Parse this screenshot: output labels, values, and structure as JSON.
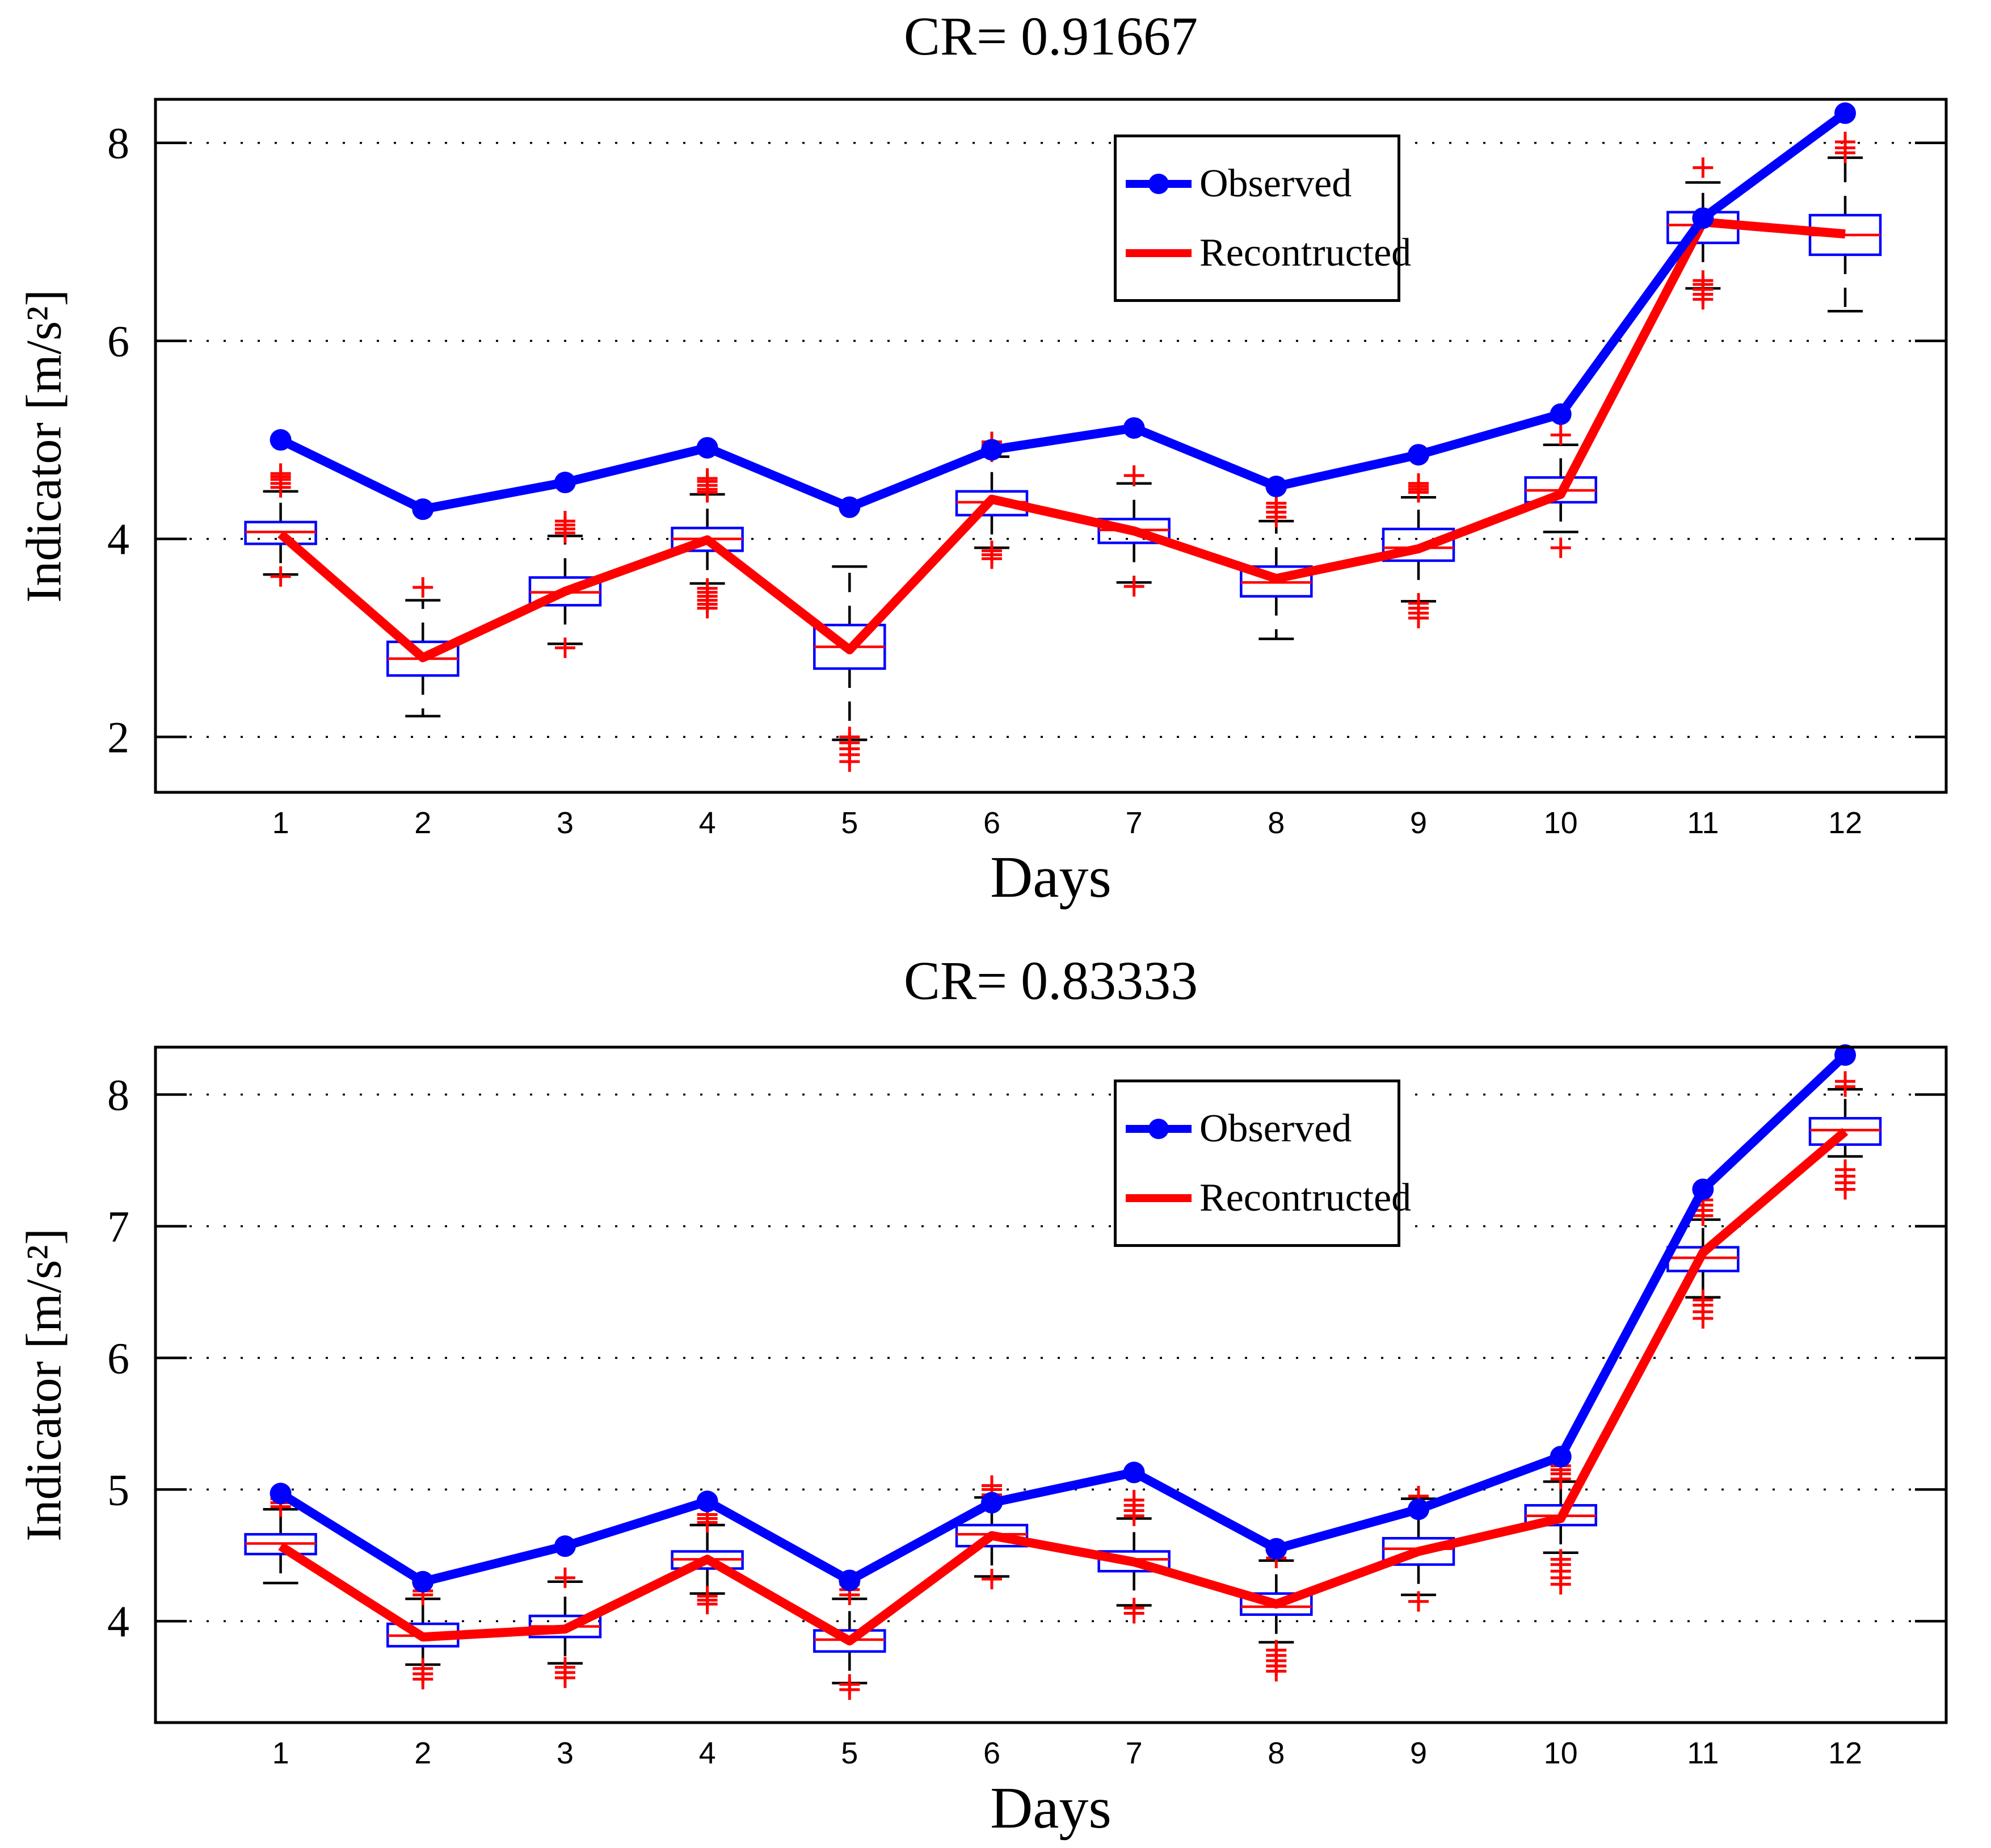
{
  "figure": {
    "background": "#ffffff"
  },
  "colors": {
    "observed": "#0000ff",
    "reconstructed": "#ff0000",
    "axis": "#000000",
    "box": "#0000ff",
    "median": "#ff0000",
    "outlier": "#ff0000",
    "grid": "#000000"
  },
  "legend": {
    "entries": [
      {
        "label": "Observed",
        "color": "#0000ff",
        "marker": "line-with-dot"
      },
      {
        "label": "Recontructed",
        "color": "#ff0000",
        "marker": "line"
      }
    ]
  },
  "chart_data": [
    {
      "type": "line+boxplot",
      "title": "CR= 0.91667",
      "xlabel": "Days",
      "ylabel": "Indicator [m/s²]",
      "xlim": [
        0.12,
        12.71
      ],
      "ylim": [
        1.44,
        8.44
      ],
      "yticks": [
        2,
        4,
        6,
        8
      ],
      "xticks": [
        1,
        2,
        3,
        4,
        5,
        6,
        7,
        8,
        9,
        10,
        11,
        12
      ],
      "grid": "horizontal-dotted",
      "legend_position": "upper-center-right",
      "series": [
        {
          "name": "Observed",
          "color": "#0000ff",
          "marker": "circle",
          "values": [
            5.0,
            4.3,
            4.57,
            4.92,
            4.32,
            4.9,
            5.12,
            4.53,
            4.85,
            5.26,
            7.24,
            8.3
          ]
        },
        {
          "name": "Recontructed",
          "color": "#ff0000",
          "marker": "none",
          "values": [
            4.05,
            2.8,
            3.47,
            3.99,
            2.88,
            4.4,
            4.08,
            3.6,
            3.9,
            4.45,
            7.2,
            7.08
          ]
        }
      ],
      "boxplots": {
        "box_color": "#0000ff",
        "median_color": "#ff0000",
        "whisker_style": "dashed-black",
        "outlier_marker": "red-plus",
        "items": [
          {
            "day": 1,
            "q1": 3.95,
            "median": 4.07,
            "q3": 4.17,
            "whisker_low": 3.64,
            "whisker_high": 4.48,
            "outliers_high": [
              4.52,
              4.56,
              4.6,
              4.63,
              4.66
            ],
            "outliers_low": [
              3.62
            ]
          },
          {
            "day": 2,
            "q1": 2.62,
            "median": 2.79,
            "q3": 2.96,
            "whisker_low": 2.21,
            "whisker_high": 3.38,
            "outliers_high": [
              3.51
            ],
            "outliers_low": []
          },
          {
            "day": 3,
            "q1": 3.33,
            "median": 3.46,
            "q3": 3.61,
            "whisker_low": 2.94,
            "whisker_high": 4.03,
            "outliers_high": [
              4.06,
              4.1,
              4.14,
              4.18
            ],
            "outliers_low": [
              2.9
            ]
          },
          {
            "day": 4,
            "q1": 3.88,
            "median": 4.0,
            "q3": 4.11,
            "whisker_low": 3.55,
            "whisker_high": 4.45,
            "outliers_high": [
              4.47,
              4.5,
              4.54,
              4.58,
              4.61
            ],
            "outliers_low": [
              3.3,
              3.34,
              3.38,
              3.42,
              3.46,
              3.5
            ]
          },
          {
            "day": 5,
            "q1": 2.69,
            "median": 2.91,
            "q3": 3.13,
            "whisker_low": 1.97,
            "whisker_high": 3.72,
            "outliers_high": [],
            "outliers_low": [
              1.75,
              1.82,
              1.88,
              1.94,
              2.0
            ]
          },
          {
            "day": 6,
            "q1": 4.24,
            "median": 4.37,
            "q3": 4.48,
            "whisker_low": 3.91,
            "whisker_high": 4.83,
            "outliers_high": [
              4.88,
              4.92,
              4.95,
              4.98
            ],
            "outliers_low": [
              3.8,
              3.84,
              3.88
            ]
          },
          {
            "day": 7,
            "q1": 3.96,
            "median": 4.09,
            "q3": 4.2,
            "whisker_low": 3.56,
            "whisker_high": 4.56,
            "outliers_high": [
              4.64
            ],
            "outliers_low": [
              3.52
            ]
          },
          {
            "day": 8,
            "q1": 3.42,
            "median": 3.56,
            "q3": 3.72,
            "whisker_low": 2.99,
            "whisker_high": 4.18,
            "outliers_high": [
              4.22,
              4.27,
              4.32,
              4.36
            ],
            "outliers_low": []
          },
          {
            "day": 9,
            "q1": 3.78,
            "median": 3.91,
            "q3": 4.1,
            "whisker_low": 3.37,
            "whisker_high": 4.42,
            "outliers_high": [
              4.47,
              4.5,
              4.53,
              4.56
            ],
            "outliers_low": [
              3.2,
              3.25,
              3.3,
              3.35
            ]
          },
          {
            "day": 10,
            "q1": 4.37,
            "median": 4.49,
            "q3": 4.62,
            "whisker_low": 4.07,
            "whisker_high": 4.95,
            "outliers_high": [
              5.05
            ],
            "outliers_low": [
              3.91
            ]
          },
          {
            "day": 11,
            "q1": 6.99,
            "median": 7.17,
            "q3": 7.3,
            "whisker_low": 6.53,
            "whisker_high": 7.6,
            "outliers_high": [
              7.75
            ],
            "outliers_low": [
              6.42,
              6.47,
              6.52,
              6.57,
              6.61
            ]
          },
          {
            "day": 12,
            "q1": 6.87,
            "median": 7.07,
            "q3": 7.27,
            "whisker_low": 6.3,
            "whisker_high": 7.85,
            "outliers_high": [
              7.9,
              7.95,
              8.01
            ],
            "outliers_low": []
          }
        ]
      }
    },
    {
      "type": "line+boxplot",
      "title": "CR= 0.83333",
      "xlabel": "Days",
      "ylabel": "Indicator [m/s²]",
      "xlim": [
        0.12,
        12.71
      ],
      "ylim": [
        3.23,
        8.36
      ],
      "yticks": [
        4,
        5,
        6,
        7,
        8
      ],
      "xticks": [
        1,
        2,
        3,
        4,
        5,
        6,
        7,
        8,
        9,
        10,
        11,
        12
      ],
      "grid": "horizontal-dotted",
      "legend_position": "upper-center-right",
      "series": [
        {
          "name": "Observed",
          "color": "#0000ff",
          "marker": "circle",
          "values": [
            4.97,
            4.3,
            4.57,
            4.91,
            4.31,
            4.9,
            5.13,
            4.55,
            4.85,
            5.25,
            7.28,
            8.3
          ]
        },
        {
          "name": "Recontructed",
          "color": "#ff0000",
          "marker": "none",
          "values": [
            4.57,
            3.88,
            3.94,
            4.47,
            3.85,
            4.65,
            4.45,
            4.13,
            4.53,
            4.78,
            6.8,
            7.72
          ]
        }
      ],
      "boxplots": {
        "box_color": "#0000ff",
        "median_color": "#ff0000",
        "whisker_style": "dashed-black",
        "outlier_marker": "red-plus",
        "items": [
          {
            "day": 1,
            "q1": 4.51,
            "median": 4.59,
            "q3": 4.66,
            "whisker_low": 4.29,
            "whisker_high": 4.85,
            "outliers_high": [
              4.87,
              4.9,
              4.93
            ],
            "outliers_low": []
          },
          {
            "day": 2,
            "q1": 3.81,
            "median": 3.89,
            "q3": 3.98,
            "whisker_low": 3.67,
            "whisker_high": 4.17,
            "outliers_high": [
              4.2,
              4.23
            ],
            "outliers_low": [
              3.56,
              3.6,
              3.64
            ]
          },
          {
            "day": 3,
            "q1": 3.88,
            "median": 3.96,
            "q3": 4.04,
            "whisker_low": 3.68,
            "whisker_high": 4.3,
            "outliers_high": [
              4.33
            ],
            "outliers_low": [
              3.57,
              3.61,
              3.65
            ]
          },
          {
            "day": 4,
            "q1": 4.4,
            "median": 4.47,
            "q3": 4.53,
            "whisker_low": 4.21,
            "whisker_high": 4.73,
            "outliers_high": [
              4.75,
              4.78,
              4.81
            ],
            "outliers_low": [
              4.13,
              4.16,
              4.19
            ]
          },
          {
            "day": 5,
            "q1": 3.77,
            "median": 3.86,
            "q3": 3.93,
            "whisker_low": 3.53,
            "whisker_high": 4.17,
            "outliers_high": [
              4.2,
              4.24,
              4.28
            ],
            "outliers_low": [
              3.48,
              3.52
            ]
          },
          {
            "day": 6,
            "q1": 4.57,
            "median": 4.66,
            "q3": 4.73,
            "whisker_low": 4.34,
            "whisker_high": 4.94,
            "outliers_high": [
              4.96,
              5.0,
              5.03
            ],
            "outliers_low": [
              4.32
            ]
          },
          {
            "day": 7,
            "q1": 4.38,
            "median": 4.47,
            "q3": 4.53,
            "whisker_low": 4.12,
            "whisker_high": 4.78,
            "outliers_high": [
              4.8,
              4.84,
              4.88,
              4.92
            ],
            "outliers_low": [
              4.06,
              4.1
            ]
          },
          {
            "day": 8,
            "q1": 4.05,
            "median": 4.11,
            "q3": 4.21,
            "whisker_low": 3.84,
            "whisker_high": 4.46,
            "outliers_high": [
              4.48
            ],
            "outliers_low": [
              3.62,
              3.66,
              3.7,
              3.74,
              3.78
            ]
          },
          {
            "day": 9,
            "q1": 4.43,
            "median": 4.55,
            "q3": 4.63,
            "whisker_low": 4.2,
            "whisker_high": 4.93,
            "outliers_high": [
              4.95
            ],
            "outliers_low": [
              4.15
            ]
          },
          {
            "day": 10,
            "q1": 4.73,
            "median": 4.8,
            "q3": 4.88,
            "whisker_low": 4.52,
            "whisker_high": 5.06,
            "outliers_high": [
              5.08,
              5.12,
              5.15,
              5.18
            ],
            "outliers_low": [
              4.28,
              4.33,
              4.38,
              4.43,
              4.47
            ]
          },
          {
            "day": 11,
            "q1": 6.66,
            "median": 6.76,
            "q3": 6.84,
            "whisker_low": 6.46,
            "whisker_high": 7.05,
            "outliers_high": [
              7.08,
              7.12,
              7.16,
              7.2
            ],
            "outliers_low": [
              6.3,
              6.35,
              6.4,
              6.44
            ]
          },
          {
            "day": 12,
            "q1": 7.62,
            "median": 7.73,
            "q3": 7.82,
            "whisker_low": 7.53,
            "whisker_high": 8.04,
            "outliers_high": [
              8.06,
              8.1
            ],
            "outliers_low": [
              7.28,
              7.33,
              7.38,
              7.43
            ]
          }
        ]
      }
    }
  ]
}
